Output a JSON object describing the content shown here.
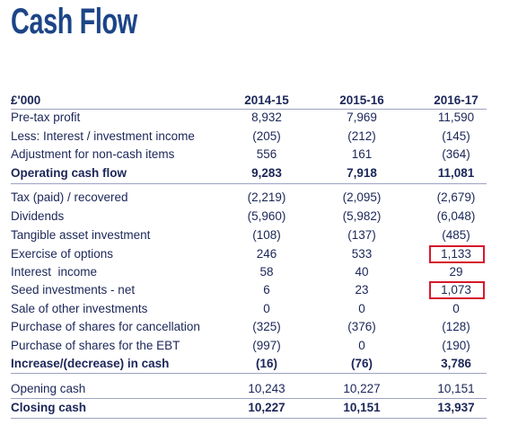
{
  "title": "Cash Flow",
  "table": {
    "header": [
      "£'000",
      "2014-15",
      "2015-16",
      "2016-17"
    ],
    "rows": [
      {
        "label": "Pre-tax profit",
        "values": [
          "8,932",
          "7,969",
          "11,590"
        ]
      },
      {
        "label": "Less: Interest / investment income",
        "values": [
          "(205)",
          "(212)",
          "(145)"
        ]
      },
      {
        "label": "Adjustment for non-cash items",
        "values": [
          "556",
          "161",
          "(364)"
        ]
      },
      {
        "label": "Operating cash flow",
        "values": [
          "9,283",
          "7,918",
          "11,081"
        ],
        "bold": true
      },
      {
        "label": "Tax (paid) / recovered",
        "values": [
          "(2,219)",
          "(2,095)",
          "(2,679)"
        ]
      },
      {
        "label": "Dividends",
        "values": [
          "(5,960)",
          "(5,982)",
          "(6,048)"
        ]
      },
      {
        "label": "Tangible asset investment",
        "values": [
          "(108)",
          "(137)",
          "(485)"
        ]
      },
      {
        "label": "Exercise of options",
        "values": [
          "246",
          "533",
          "1,133"
        ]
      },
      {
        "label": "Interest  income",
        "values": [
          "58",
          "40",
          "29"
        ]
      },
      {
        "label": "Seed investments - net",
        "values": [
          "6",
          "23",
          "1,073"
        ]
      },
      {
        "label": "Sale of other investments",
        "values": [
          "0",
          "0",
          "0"
        ]
      },
      {
        "label": "Purchase of shares for cancellation",
        "values": [
          "(325)",
          "(376)",
          "(128)"
        ]
      },
      {
        "label": "Purchase of shares for the EBT",
        "values": [
          "(997)",
          "0",
          "(190)"
        ]
      },
      {
        "label": "Increase/(decrease) in cash",
        "values": [
          "(16)",
          "(76)",
          "3,786"
        ],
        "bold": true
      },
      {
        "label": "Opening cash",
        "values": [
          "10,243",
          "10,227",
          "10,151"
        ]
      },
      {
        "label": "Closing cash",
        "values": [
          "10,227",
          "10,151",
          "13,937"
        ],
        "bold": true
      }
    ]
  }
}
